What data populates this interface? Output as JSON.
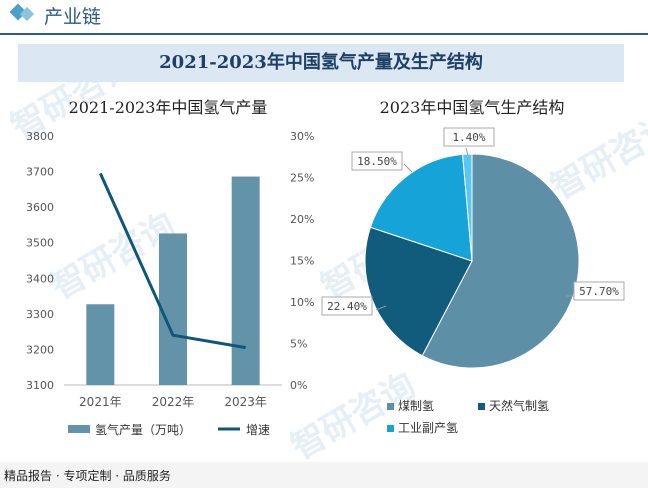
{
  "header": {
    "title": "产业链"
  },
  "banner": {
    "title": "2021-2023年中国氢气产量及生产结构"
  },
  "footer": {
    "text": "精品报告 · 专项定制 · 品质服务"
  },
  "chart_data": [
    {
      "type": "bar",
      "title": "2021-2023年中国氢气产量",
      "categories": [
        "2021年",
        "2022年",
        "2023年"
      ],
      "series": [
        {
          "name": "氢气产量（万吨）",
          "type": "bar",
          "axis": "left",
          "values": [
            3327,
            3526,
            3686
          ],
          "color": "#6393a9"
        },
        {
          "name": "增速",
          "type": "line",
          "axis": "right",
          "values": [
            25.5,
            6.0,
            4.5
          ],
          "color": "#0f5777"
        }
      ],
      "ylim": [
        3100,
        3800
      ],
      "yticks": [
        "3100",
        "3200",
        "3300",
        "3400",
        "3500",
        "3600",
        "3700",
        "3800"
      ],
      "y2lim": [
        0,
        30
      ],
      "y2ticks": [
        "0%",
        "5%",
        "10%",
        "15%",
        "20%",
        "25%",
        "30%"
      ],
      "legend": "bottom"
    },
    {
      "type": "pie",
      "title": "2023年中国氢气生产结构",
      "slices": [
        {
          "name": "煤制氢",
          "value": 57.7,
          "label": "57.70%",
          "color": "#5d8fa6"
        },
        {
          "name": "天然气制氢",
          "value": 22.4,
          "label": "22.40%",
          "color": "#115c7c"
        },
        {
          "name": "工业副产氢",
          "value": 18.5,
          "label": "18.50%",
          "color": "#16a3d8"
        },
        {
          "name": "",
          "value": 1.4,
          "label": "1.40%",
          "color": "#59c7ef"
        }
      ],
      "legend": "bottom"
    }
  ]
}
